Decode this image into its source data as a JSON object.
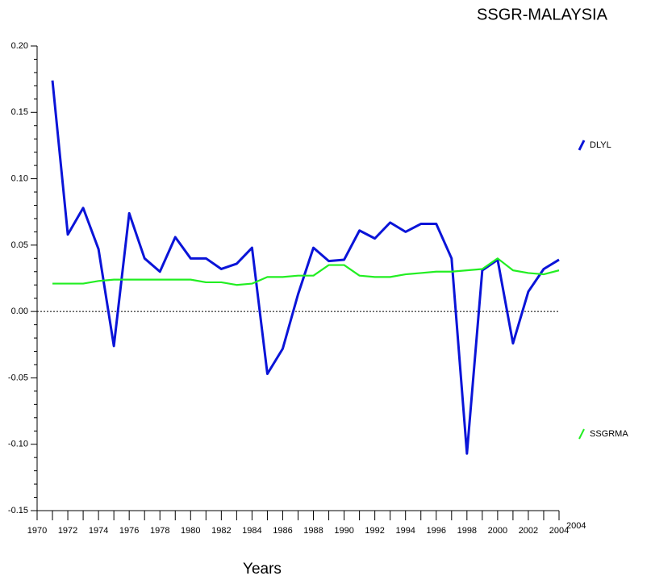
{
  "chart_data": {
    "type": "line",
    "title": "SSGR-MALAYSIA",
    "x_label": "Years",
    "annotation": "2004",
    "x": [
      1971,
      1972,
      1973,
      1974,
      1975,
      1976,
      1977,
      1978,
      1979,
      1980,
      1981,
      1982,
      1983,
      1984,
      1985,
      1986,
      1987,
      1988,
      1989,
      1990,
      1991,
      1992,
      1993,
      1994,
      1995,
      1996,
      1997,
      1998,
      1999,
      2000,
      2001,
      2002,
      2003,
      2004
    ],
    "series": [
      {
        "name": "DLYL",
        "color": "#0a14d8",
        "values": [
          0.174,
          0.058,
          0.078,
          0.047,
          -0.026,
          0.074,
          0.04,
          0.03,
          0.056,
          0.04,
          0.04,
          0.032,
          0.036,
          0.048,
          -0.047,
          -0.028,
          0.013,
          0.048,
          0.038,
          0.039,
          0.061,
          0.055,
          0.067,
          0.06,
          0.066,
          0.066,
          0.04,
          -0.107,
          0.031,
          0.039,
          -0.024,
          0.015,
          0.032,
          0.039
        ]
      },
      {
        "name": "SSGRMA",
        "color": "#22ee22",
        "values": [
          0.021,
          0.021,
          0.021,
          0.023,
          0.024,
          0.024,
          0.024,
          0.024,
          0.024,
          0.024,
          0.022,
          0.022,
          0.02,
          0.021,
          0.026,
          0.026,
          0.027,
          0.027,
          0.035,
          0.035,
          0.027,
          0.026,
          0.026,
          0.028,
          0.029,
          0.03,
          0.03,
          0.031,
          0.032,
          0.04,
          0.031,
          0.029,
          0.028,
          0.031
        ]
      }
    ],
    "xlim": [
      1970,
      2004
    ],
    "xticks": [
      1970,
      1972,
      1974,
      1976,
      1978,
      1980,
      1982,
      1984,
      1986,
      1988,
      1990,
      1992,
      1994,
      1996,
      1998,
      2000,
      2002,
      2004
    ],
    "ylim": [
      -0.15,
      0.2
    ],
    "yticks": [
      {
        "value": -0.15,
        "label": "-0.15"
      },
      {
        "value": -0.1,
        "label": "-0.10"
      },
      {
        "value": -0.05,
        "label": "-0.05"
      },
      {
        "value": 0,
        "label": "0.00"
      },
      {
        "value": 0.05,
        "label": "0.05"
      },
      {
        "value": 0.1,
        "label": "0.10"
      },
      {
        "value": 0.15,
        "label": "0.15"
      },
      {
        "value": 0.2,
        "label": "0.20"
      }
    ],
    "zero_line": true,
    "legend": "right"
  }
}
